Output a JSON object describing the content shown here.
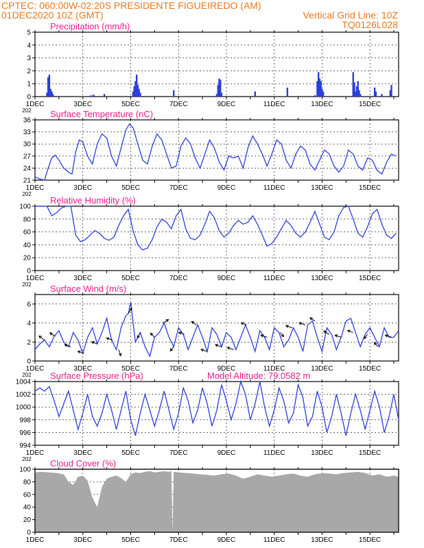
{
  "header": {
    "line1_left": "CPTEC:   060:00W-02:20S   PRESIDENTE FIGUEIREDO (AM)",
    "line2_left": "01DEC2020  10Z (GMT)",
    "line2_right": "Vertical Grid Line: 10Z",
    "line3_right": "TQ0126L028"
  },
  "colors": {
    "header": "#e8781e",
    "title": "#ee1a8b",
    "series": "#2a3fdb",
    "grid": "#000000",
    "cloud": "#a8a8a8"
  },
  "x_ticks": [
    "1DEC",
    "3DEC",
    "5DEC",
    "7DEC",
    "9DEC",
    "11DEC",
    "13DEC",
    "15DEC"
  ],
  "x_tick_sub": "202",
  "chart_data": [
    {
      "type": "bar",
      "title": "Precipitation  (mm/h)",
      "x_unit": "day offset from 01DEC2020 10Z",
      "ylim": [
        0,
        5
      ],
      "yticks": [
        "0",
        "1",
        "2",
        "3",
        "4",
        "5"
      ],
      "x": [
        0.5,
        0.55,
        0.6,
        0.65,
        0.7,
        0.75,
        2.35,
        2.45,
        2.9,
        4.1,
        4.15,
        4.2,
        4.25,
        4.3,
        4.35,
        4.4,
        5.8,
        7.6,
        7.65,
        7.7,
        7.75,
        7.8,
        9.2,
        10.55,
        11.7,
        11.8,
        11.85,
        11.9,
        11.95,
        12.0,
        12.05,
        13.3,
        13.35,
        13.4,
        13.45,
        13.5,
        13.55,
        13.6,
        14.2,
        14.25,
        14.5,
        14.85,
        14.9
      ],
      "values": [
        0.3,
        1.5,
        1.7,
        0.6,
        0.4,
        0.2,
        0.1,
        0.15,
        0.2,
        0.4,
        0.8,
        1.2,
        1.7,
        0.9,
        0.6,
        0.3,
        0.5,
        0.2,
        0.9,
        1.4,
        1.3,
        0.3,
        0.4,
        0.7,
        0.1,
        1.2,
        1.9,
        1.4,
        1.2,
        0.6,
        0.4,
        1.9,
        1.1,
        0.4,
        0.8,
        1.2,
        0.5,
        0.2,
        0.7,
        0.4,
        0.2,
        0.5,
        0.9
      ]
    },
    {
      "type": "line",
      "title": "Surface Temperature (nC)",
      "x_unit": "day offset from 01DEC2020 10Z",
      "ylim": [
        21,
        36
      ],
      "yticks": [
        "21",
        "24",
        "27",
        "30",
        "33",
        "36"
      ],
      "x": [
        0,
        0.2,
        0.4,
        0.55,
        0.7,
        0.85,
        1.0,
        1.2,
        1.4,
        1.55,
        1.7,
        1.85,
        2.0,
        2.2,
        2.4,
        2.6,
        2.8,
        3.0,
        3.2,
        3.4,
        3.6,
        3.8,
        3.95,
        4.1,
        4.3,
        4.5,
        4.7,
        4.9,
        5.1,
        5.3,
        5.5,
        5.7,
        5.9,
        6.1,
        6.3,
        6.5,
        6.7,
        6.9,
        7.1,
        7.3,
        7.5,
        7.7,
        7.9,
        8.1,
        8.3,
        8.5,
        8.7,
        8.9,
        9.1,
        9.3,
        9.5,
        9.7,
        9.9,
        10.1,
        10.3,
        10.5,
        10.7,
        10.9,
        11.1,
        11.3,
        11.5,
        11.7,
        11.9,
        12.1,
        12.3,
        12.5,
        12.7,
        12.9,
        13.1,
        13.3,
        13.5,
        13.7,
        13.9,
        14.1,
        14.3,
        14.5,
        14.7,
        14.9,
        15.1
      ],
      "values": [
        21.8,
        21.3,
        21.0,
        24.0,
        26.5,
        27.2,
        26.0,
        24.0,
        23.0,
        22.5,
        28.0,
        31.0,
        30.5,
        27.0,
        25.0,
        30.0,
        32.5,
        31.5,
        27.0,
        24.5,
        29.0,
        33.5,
        35.0,
        34.0,
        30.0,
        26.0,
        25.0,
        29.5,
        32.5,
        31.0,
        27.5,
        24.0,
        24.5,
        29.5,
        31.5,
        30.0,
        26.5,
        24.0,
        27.5,
        31.0,
        29.0,
        25.5,
        23.5,
        27.0,
        26.5,
        27.0,
        24.0,
        29.0,
        32.0,
        30.0,
        27.5,
        24.5,
        27.5,
        31.0,
        30.0,
        26.0,
        24.0,
        27.5,
        29.5,
        28.5,
        25.0,
        23.5,
        26.0,
        28.5,
        27.5,
        24.5,
        23.0,
        24.5,
        28.5,
        27.5,
        24.5,
        23.5,
        26.5,
        26.0,
        23.5,
        22.5,
        25.5,
        27.5,
        27.0
      ]
    },
    {
      "type": "line",
      "title": "Relative Humidity  (%)",
      "x_unit": "day offset from 01DEC2020 10Z",
      "ylim": [
        0,
        100
      ],
      "yticks": [
        "0",
        "20",
        "40",
        "60",
        "80",
        "100"
      ],
      "x": [
        0,
        0.3,
        0.5,
        0.7,
        0.9,
        1.1,
        1.3,
        1.5,
        1.7,
        1.9,
        2.1,
        2.3,
        2.5,
        2.7,
        2.9,
        3.1,
        3.3,
        3.5,
        3.7,
        3.9,
        4.1,
        4.3,
        4.5,
        4.7,
        4.9,
        5.1,
        5.3,
        5.5,
        5.7,
        5.9,
        6.1,
        6.3,
        6.5,
        6.7,
        6.9,
        7.1,
        7.3,
        7.5,
        7.7,
        7.9,
        8.1,
        8.3,
        8.5,
        8.7,
        8.9,
        9.1,
        9.3,
        9.5,
        9.7,
        9.9,
        10.1,
        10.3,
        10.5,
        10.7,
        10.9,
        11.1,
        11.3,
        11.5,
        11.7,
        11.9,
        12.1,
        12.3,
        12.5,
        12.7,
        12.9,
        13.1,
        13.3,
        13.5,
        13.7,
        13.9,
        14.1,
        14.3,
        14.5,
        14.7,
        14.9,
        15.1
      ],
      "values": [
        100,
        100,
        100,
        85,
        90,
        97,
        100,
        100,
        55,
        45,
        48,
        55,
        62,
        58,
        50,
        47,
        52,
        70,
        85,
        95,
        62,
        40,
        32,
        35,
        48,
        68,
        80,
        75,
        65,
        85,
        95,
        65,
        50,
        48,
        55,
        72,
        92,
        82,
        62,
        52,
        58,
        70,
        78,
        72,
        75,
        85,
        72,
        55,
        38,
        42,
        52,
        65,
        78,
        70,
        58,
        52,
        60,
        75,
        92,
        72,
        52,
        48,
        60,
        85,
        98,
        100,
        80,
        58,
        52,
        68,
        88,
        95,
        72,
        55,
        50,
        58
      ]
    },
    {
      "type": "line",
      "title": "Surface Wind  (m/s)",
      "x_unit": "day offset from 01DEC2020 10Z",
      "ylim": [
        0,
        7
      ],
      "yticks": [
        "0",
        "2",
        "4",
        "6"
      ],
      "x": [
        0,
        0.2,
        0.4,
        0.6,
        0.8,
        1.0,
        1.2,
        1.4,
        1.6,
        1.8,
        2.0,
        2.2,
        2.4,
        2.6,
        2.8,
        3.0,
        3.2,
        3.4,
        3.6,
        3.8,
        3.9,
        4.0,
        4.1,
        4.2,
        4.4,
        4.6,
        4.8,
        5.0,
        5.2,
        5.4,
        5.6,
        5.8,
        6.0,
        6.2,
        6.4,
        6.6,
        6.8,
        7.0,
        7.2,
        7.4,
        7.6,
        7.8,
        8.0,
        8.2,
        8.4,
        8.6,
        8.8,
        9.0,
        9.2,
        9.4,
        9.6,
        9.8,
        10.0,
        10.2,
        10.4,
        10.6,
        10.8,
        11.0,
        11.2,
        11.4,
        11.6,
        11.8,
        12.0,
        12.2,
        12.4,
        12.6,
        12.8,
        13.0,
        13.2,
        13.4,
        13.6,
        13.8,
        14.0,
        14.2,
        14.4,
        14.6,
        14.8,
        15.0,
        15.2
      ],
      "values": [
        1.2,
        1.8,
        2.2,
        1.5,
        2.6,
        3.2,
        2.0,
        1.5,
        3.0,
        2.2,
        0.8,
        2.5,
        3.5,
        1.8,
        3.0,
        4.5,
        2.2,
        1.2,
        3.5,
        4.8,
        5.0,
        6.2,
        4.0,
        2.0,
        3.0,
        1.5,
        0.5,
        2.5,
        3.0,
        4.0,
        2.5,
        1.5,
        3.5,
        2.8,
        1.2,
        2.5,
        3.8,
        2.5,
        1.0,
        3.5,
        2.8,
        1.5,
        3.0,
        2.5,
        1.2,
        2.5,
        3.8,
        2.5,
        1.0,
        3.2,
        2.5,
        1.2,
        3.5,
        3.0,
        1.5,
        2.2,
        3.5,
        2.5,
        1.0,
        3.8,
        4.2,
        2.5,
        1.0,
        3.5,
        2.8,
        1.2,
        2.5,
        4.2,
        4.5,
        3.0,
        1.5,
        2.8,
        3.5,
        2.5,
        1.5,
        3.5,
        2.5,
        2.5,
        3.2
      ],
      "arrows": [
        {
          "x": 0.4,
          "u": -0.8,
          "v": 0.6
        },
        {
          "x": 0.85,
          "u": -0.8,
          "v": 0.5
        },
        {
          "x": 1.5,
          "u": -0.9,
          "v": 0.3
        },
        {
          "x": 2.05,
          "u": -0.9,
          "v": 0.3
        },
        {
          "x": 2.6,
          "u": -0.8,
          "v": 0.3
        },
        {
          "x": 3.25,
          "u": -0.9,
          "v": 0.3
        },
        {
          "x": 3.5,
          "u": 0.3,
          "v": -0.9
        },
        {
          "x": 3.9,
          "u": 0.5,
          "v": 0.8
        },
        {
          "x": 4.4,
          "u": -0.4,
          "v": -0.8
        },
        {
          "x": 5.0,
          "u": -0.6,
          "v": 0.6
        },
        {
          "x": 5.35,
          "u": 0.8,
          "v": 0.5
        },
        {
          "x": 5.8,
          "u": -0.5,
          "v": -0.6
        },
        {
          "x": 6.25,
          "u": -0.8,
          "v": 0.3
        },
        {
          "x": 6.75,
          "u": -0.7,
          "v": 0.5
        },
        {
          "x": 7.2,
          "u": -0.9,
          "v": 0.3
        },
        {
          "x": 7.8,
          "u": -0.9,
          "v": 0.3
        },
        {
          "x": 8.3,
          "u": -0.9,
          "v": 0.3
        },
        {
          "x": 8.85,
          "u": -0.8,
          "v": 0.3
        },
        {
          "x": 9.7,
          "u": -0.9,
          "v": 0.3
        },
        {
          "x": 10.25,
          "u": 0.5,
          "v": -0.6
        },
        {
          "x": 10.75,
          "u": -0.9,
          "v": 0.3
        },
        {
          "x": 11.3,
          "u": -0.9,
          "v": 0.3
        },
        {
          "x": 11.7,
          "u": -0.7,
          "v": 0.5
        },
        {
          "x": 12.3,
          "u": -0.8,
          "v": 0.5
        },
        {
          "x": 12.8,
          "u": -0.9,
          "v": 0.3
        },
        {
          "x": 13.3,
          "u": -0.8,
          "v": 0.3
        },
        {
          "x": 13.9,
          "u": -0.5,
          "v": -0.6
        },
        {
          "x": 14.35,
          "u": -0.6,
          "v": 0.6
        },
        {
          "x": 14.9,
          "u": -0.9,
          "v": 0.3
        }
      ]
    },
    {
      "type": "line",
      "title": "Surface Pressure (hPa)",
      "annotation": "Model Altitude: 79.0582 m",
      "x_unit": "day offset from 01DEC2020 10Z",
      "ylim": [
        994,
        1004
      ],
      "yticks": [
        "994",
        "996",
        "998",
        "1000",
        "1002",
        "1004"
      ],
      "x": [
        0,
        0.2,
        0.4,
        0.6,
        0.8,
        1.0,
        1.2,
        1.4,
        1.6,
        1.8,
        2.0,
        2.2,
        2.4,
        2.6,
        2.8,
        3.0,
        3.2,
        3.4,
        3.6,
        3.8,
        4.0,
        4.2,
        4.4,
        4.6,
        4.8,
        5.0,
        5.2,
        5.4,
        5.6,
        5.8,
        6.0,
        6.2,
        6.4,
        6.6,
        6.8,
        7.0,
        7.2,
        7.4,
        7.6,
        7.8,
        8.0,
        8.2,
        8.4,
        8.6,
        8.8,
        9.0,
        9.2,
        9.4,
        9.6,
        9.8,
        10.0,
        10.2,
        10.4,
        10.6,
        10.8,
        11.0,
        11.2,
        11.4,
        11.6,
        11.8,
        12.0,
        12.2,
        12.4,
        12.6,
        12.8,
        13.0,
        13.2,
        13.4,
        13.6,
        13.8,
        14.0,
        14.2,
        14.4,
        14.6,
        14.8,
        15.0,
        15.2
      ],
      "values": [
        1002.5,
        1003.0,
        1002.5,
        1003.2,
        1001.0,
        998.5,
        1000.5,
        1002.5,
        999.5,
        996.5,
        999.0,
        1002.0,
        998.5,
        997.0,
        999.0,
        1002.0,
        999.5,
        996.5,
        999.5,
        1002.5,
        998.0,
        995.5,
        999.0,
        1002.0,
        999.5,
        997.0,
        999.5,
        1002.5,
        999.5,
        996.5,
        999.0,
        1003.0,
        1001.0,
        997.5,
        999.5,
        1003.0,
        1000.5,
        997.0,
        999.5,
        1003.5,
        1001.0,
        998.0,
        1000.5,
        1004.0,
        1002.0,
        998.0,
        1000.5,
        1004.0,
        1000.0,
        997.0,
        999.5,
        1003.0,
        1001.0,
        997.5,
        999.0,
        1003.5,
        1001.5,
        997.0,
        998.5,
        1002.5,
        1000.0,
        996.0,
        998.5,
        1002.0,
        999.0,
        995.5,
        999.0,
        1002.0,
        999.5,
        996.5,
        999.5,
        1002.5,
        1000.0,
        996.0,
        998.5,
        1002.0,
        998.0
      ]
    },
    {
      "type": "area",
      "title": "Cloud Cover  (%)",
      "x_unit": "day offset from 01DEC2020 10Z",
      "ylim": [
        0,
        100
      ],
      "yticks": [
        "0",
        "20",
        "40",
        "60",
        "80",
        "100"
      ],
      "x": [
        0,
        0.3,
        0.6,
        0.9,
        1.2,
        1.4,
        1.6,
        1.8,
        2.0,
        2.2,
        2.4,
        2.6,
        2.8,
        3.0,
        3.2,
        3.4,
        3.6,
        3.8,
        4.0,
        4.2,
        4.4,
        4.6,
        4.8,
        5.0,
        5.2,
        5.4,
        5.6,
        5.7,
        5.75,
        5.8,
        6.0,
        6.3,
        6.6,
        6.9,
        7.2,
        7.5,
        7.8,
        8.1,
        8.4,
        8.7,
        9.0,
        9.3,
        9.6,
        9.9,
        10.2,
        10.5,
        10.8,
        11.1,
        11.4,
        11.7,
        12.0,
        12.3,
        12.6,
        12.9,
        13.2,
        13.5,
        13.8,
        14.1,
        14.4,
        14.7,
        15.0,
        15.2
      ],
      "values": [
        95,
        96,
        95,
        94,
        92,
        80,
        75,
        88,
        90,
        82,
        55,
        40,
        72,
        85,
        88,
        90,
        86,
        80,
        92,
        95,
        94,
        96,
        97,
        95,
        96,
        97,
        96,
        97,
        0,
        96,
        95,
        94,
        93,
        92,
        91,
        90,
        92,
        93,
        90,
        85,
        88,
        92,
        90,
        88,
        90,
        92,
        93,
        90,
        88,
        92,
        94,
        93,
        92,
        94,
        95,
        96,
        94,
        90,
        92,
        88,
        90,
        88
      ]
    }
  ]
}
